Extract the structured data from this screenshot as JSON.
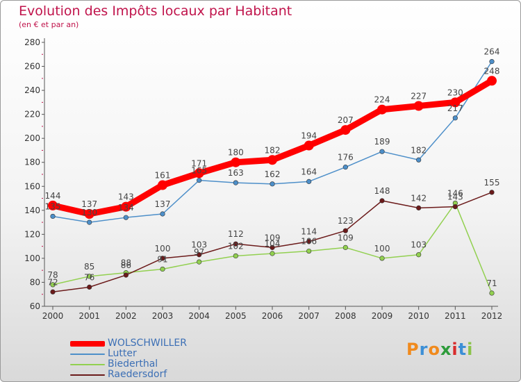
{
  "title": "Evolution des Impôts locaux par Habitant",
  "subtitle": "(en € et par an)",
  "logo": {
    "text": "Proxiti",
    "letter_colors": [
      "#f08a1d",
      "#3c8fd6",
      "#f08a1d",
      "#2d9b3a",
      "#d82c2c",
      "#3c8fd6",
      "#8bc34a"
    ]
  },
  "chart_data": {
    "type": "line",
    "x": [
      "2000",
      "2001",
      "2002",
      "2003",
      "2004",
      "2005",
      "2006",
      "2007",
      "2008",
      "2009",
      "2010",
      "2011",
      "2012"
    ],
    "ylim": [
      60,
      280
    ],
    "yticks": [
      60,
      80,
      100,
      120,
      140,
      160,
      180,
      200,
      220,
      240,
      260,
      280
    ],
    "grid": false,
    "legend_position": "bottom-left",
    "series": [
      {
        "name": "WOLSCHWILLER",
        "color": "#ff0000",
        "values": [
          144,
          137,
          143,
          161,
          171,
          180,
          182,
          194,
          207,
          224,
          227,
          230,
          248
        ]
      },
      {
        "name": "Lutter",
        "color": "#4d8fc9",
        "values": [
          135,
          130,
          134,
          137,
          165,
          163,
          162,
          164,
          176,
          189,
          182,
          217,
          264
        ]
      },
      {
        "name": "Biederthal",
        "color": "#92d050",
        "values": [
          78,
          85,
          88,
          91,
          97,
          102,
          104,
          106,
          109,
          100,
          103,
          146,
          71
        ]
      },
      {
        "name": "Raedersdorf",
        "color": "#6b1a1a",
        "values": [
          72,
          76,
          86,
          100,
          103,
          112,
          109,
          114,
          123,
          148,
          142,
          143,
          155
        ]
      }
    ]
  }
}
